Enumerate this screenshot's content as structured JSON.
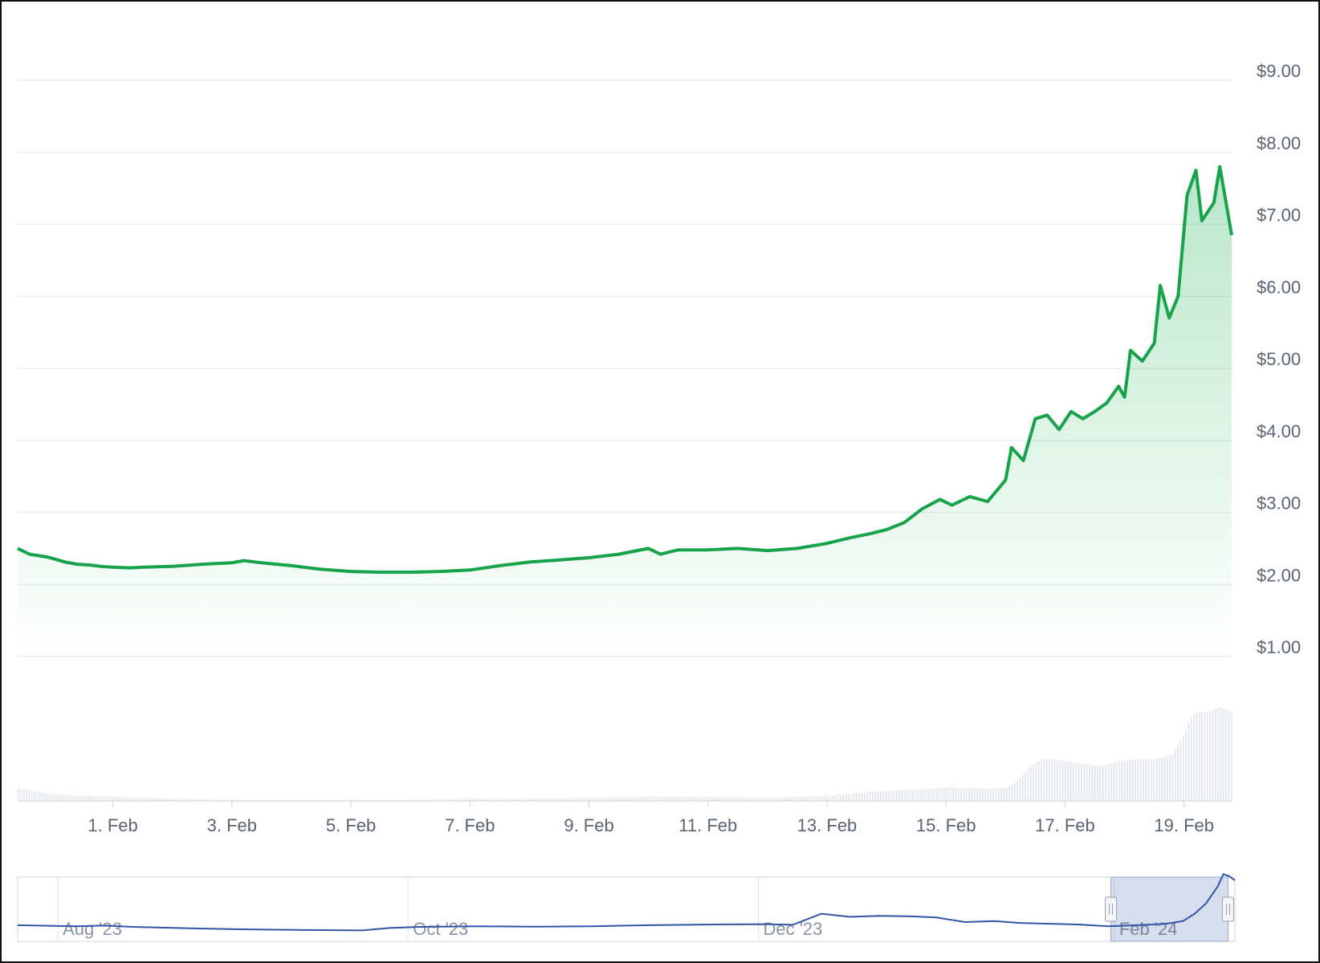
{
  "chart_data": {
    "type": "area",
    "y_axis": {
      "range": [
        1,
        9.7
      ],
      "tick_values": [
        1,
        2,
        3,
        4,
        5,
        6,
        7,
        8,
        9
      ],
      "tick_labels": [
        "$1.00",
        "$2.00",
        "$3.00",
        "$4.00",
        "$5.00",
        "$6.00",
        "$7.00",
        "$8.00",
        "$9.00"
      ],
      "position": "right",
      "grid": true
    },
    "x_axis": {
      "range_days": [
        30.4,
        50.8
      ],
      "tick_labels": [
        "1. Feb",
        "3. Feb",
        "5. Feb",
        "7. Feb",
        "9. Feb",
        "11. Feb",
        "13. Feb",
        "15. Feb",
        "17. Feb",
        "19. Feb"
      ],
      "tick_days": [
        32,
        34,
        36,
        38,
        40,
        42,
        44,
        46,
        48,
        50
      ]
    },
    "series": [
      {
        "color": "#16a34a",
        "x": [
          30.4,
          30.6,
          30.9,
          31.2,
          31.4,
          31.6,
          31.8,
          32.0,
          32.3,
          32.5,
          33.0,
          33.5,
          34.0,
          34.2,
          34.5,
          35.0,
          35.5,
          36.0,
          36.5,
          37.0,
          37.5,
          38.0,
          38.5,
          39.0,
          39.5,
          40.0,
          40.5,
          41.0,
          41.2,
          41.5,
          42.0,
          42.5,
          43.0,
          43.5,
          44.0,
          44.4,
          44.7,
          45.0,
          45.3,
          45.6,
          45.9,
          46.1,
          46.4,
          46.7,
          47.0,
          47.1,
          47.3,
          47.5,
          47.7,
          47.9,
          48.1,
          48.3,
          48.5,
          48.7,
          48.9,
          49.0,
          49.1,
          49.3,
          49.5,
          49.6,
          49.75,
          49.9,
          50.05,
          50.2,
          50.3,
          50.5,
          50.6,
          50.8
        ],
        "y": [
          2.5,
          2.42,
          2.38,
          2.31,
          2.28,
          2.27,
          2.25,
          2.24,
          2.23,
          2.24,
          2.25,
          2.28,
          2.3,
          2.33,
          2.3,
          2.26,
          2.21,
          2.18,
          2.17,
          2.17,
          2.18,
          2.2,
          2.26,
          2.31,
          2.34,
          2.37,
          2.42,
          2.5,
          2.42,
          2.48,
          2.48,
          2.5,
          2.47,
          2.5,
          2.57,
          2.65,
          2.7,
          2.76,
          2.86,
          3.05,
          3.18,
          3.1,
          3.22,
          3.15,
          3.45,
          3.9,
          3.72,
          4.3,
          4.35,
          4.15,
          4.4,
          4.3,
          4.4,
          4.52,
          4.75,
          4.6,
          5.25,
          5.1,
          5.35,
          6.15,
          5.7,
          6.0,
          7.4,
          7.75,
          7.05,
          7.3,
          7.8,
          6.85
        ]
      }
    ],
    "volume": {
      "color": "#e5e8ee",
      "x": [
        30.4,
        31.0,
        32.0,
        33.0,
        34.0,
        35.0,
        36.0,
        37.0,
        38.0,
        39.0,
        40.0,
        41.0,
        42.0,
        43.0,
        44.0,
        44.8,
        45.5,
        46.0,
        46.5,
        47.0,
        47.2,
        47.4,
        47.6,
        47.8,
        48.0,
        48.3,
        48.6,
        48.9,
        49.2,
        49.5,
        49.8,
        50.0,
        50.1,
        50.2,
        50.4,
        50.6,
        50.8
      ],
      "h": [
        0.12,
        0.06,
        0.04,
        0.02,
        0.01,
        0.01,
        0.01,
        0.01,
        0.02,
        0.02,
        0.03,
        0.04,
        0.04,
        0.03,
        0.05,
        0.09,
        0.11,
        0.13,
        0.12,
        0.12,
        0.2,
        0.33,
        0.4,
        0.4,
        0.38,
        0.36,
        0.33,
        0.38,
        0.4,
        0.4,
        0.45,
        0.65,
        0.8,
        0.85,
        0.85,
        0.9,
        0.85
      ]
    }
  },
  "navigator": {
    "labels": [
      "Aug '23",
      "Oct '23",
      "Dec '23",
      "Feb '24"
    ],
    "label_days": [
      -153,
      -92,
      -31,
      31
    ],
    "day_range": [
      -160,
      52
    ],
    "selection_days": [
      30.4,
      50.8
    ],
    "line_color": "#3354a6",
    "series_days": [
      -160,
      -150,
      -145,
      -140,
      -130,
      -120,
      -110,
      -100,
      -95,
      -90,
      -80,
      -70,
      -60,
      -50,
      -40,
      -30,
      -25,
      -20,
      -15,
      -10,
      -5,
      0,
      5,
      10,
      15,
      20,
      25,
      30,
      35,
      40,
      43,
      45,
      47,
      49,
      50,
      51,
      52
    ],
    "series_values": [
      0.35,
      0.3,
      0.33,
      0.27,
      0.2,
      0.15,
      0.12,
      0.1,
      0.22,
      0.27,
      0.3,
      0.28,
      0.3,
      0.35,
      0.38,
      0.4,
      0.37,
      0.9,
      0.75,
      0.8,
      0.78,
      0.72,
      0.5,
      0.55,
      0.45,
      0.42,
      0.38,
      0.3,
      0.35,
      0.42,
      0.55,
      0.9,
      1.4,
      2.2,
      2.8,
      2.7,
      2.5
    ]
  }
}
